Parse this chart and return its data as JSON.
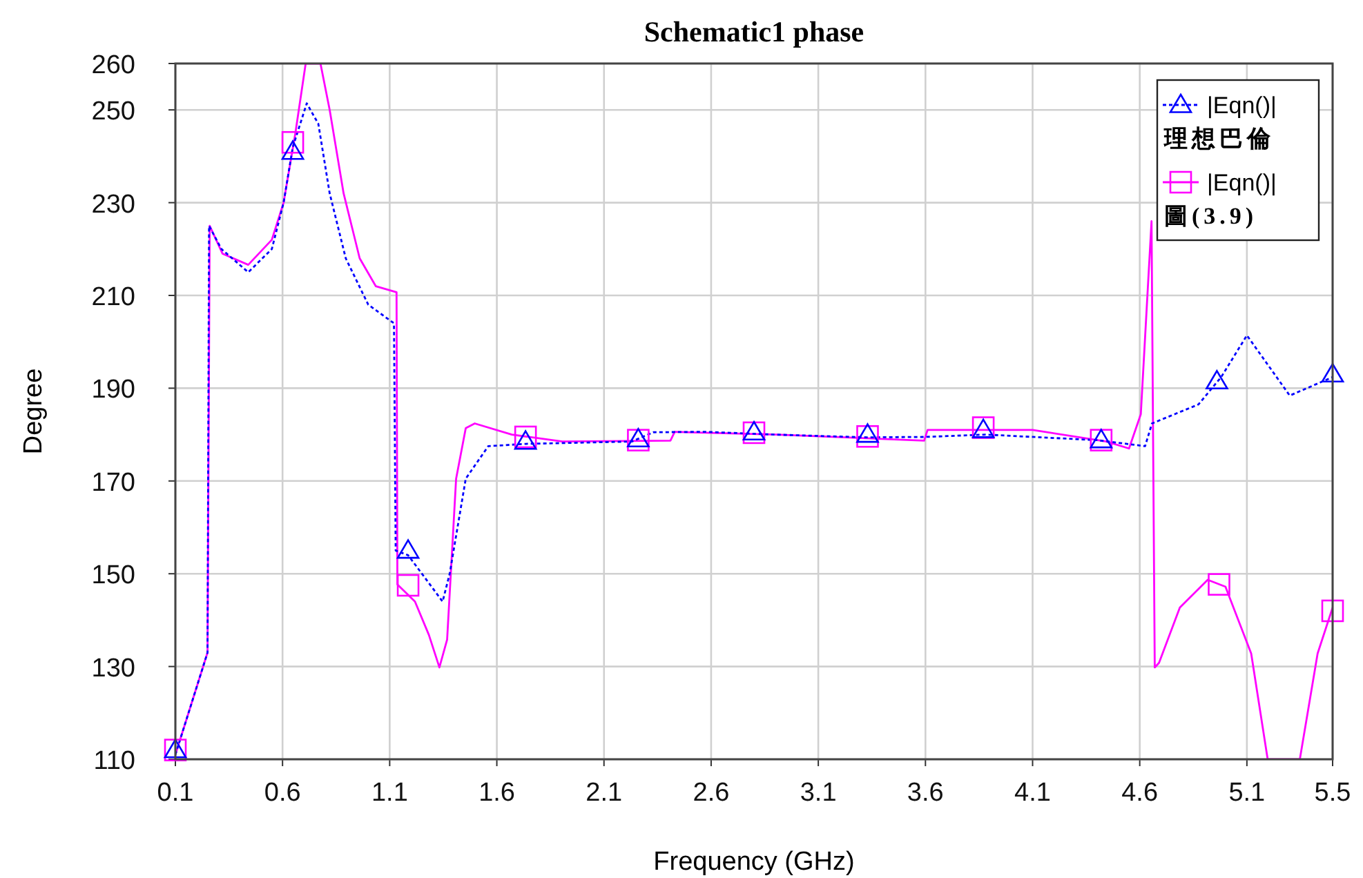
{
  "chart_data": {
    "type": "line",
    "title": "Schematic1 phase",
    "xlabel": "Frequency (GHz)",
    "ylabel": "Degree",
    "xlim": [
      0.1,
      5.5
    ],
    "xticks": [
      0.1,
      0.6,
      1.1,
      1.6,
      2.1,
      2.6,
      3.1,
      3.6,
      4.1,
      4.6,
      5.1,
      5.5
    ],
    "ylim": [
      110,
      260
    ],
    "yticks": [
      110,
      130,
      150,
      170,
      190,
      210,
      230,
      250,
      260
    ],
    "grid": true,
    "legend": "top right",
    "series": [
      {
        "name": "|Eqn()|\n理想巴倫",
        "color": "#0000ff",
        "line_style": "dotted",
        "x": [
          0.1,
          0.25,
          0.257,
          0.315,
          0.44,
          0.55,
          0.605,
          0.648,
          0.713,
          0.767,
          0.82,
          0.895,
          1.0,
          1.12,
          1.128,
          1.186,
          1.347,
          1.38,
          1.455,
          1.56,
          1.734,
          2.23,
          2.33,
          2.57,
          2.895,
          3.326,
          3.605,
          3.88,
          4.4,
          4.625,
          4.657,
          4.874,
          4.98,
          5.1,
          5.3,
          5.5
        ],
        "values": [
          111,
          133,
          225,
          220,
          215,
          220,
          230,
          242,
          251.4,
          247,
          232,
          218,
          208,
          204,
          155,
          154,
          144,
          150,
          170.5,
          177.5,
          178,
          178.5,
          180.5,
          180.6,
          180,
          179.4,
          179.5,
          180,
          178.8,
          177.5,
          182.4,
          186.5,
          192.4,
          201.4,
          188.4,
          192.4
        ]
      },
      {
        "name": "|Eqn()|\n圖(3.9)",
        "color": "#ff00ff",
        "line_style": "solid",
        "x": [
          0.1,
          0.25,
          0.26,
          0.32,
          0.44,
          0.55,
          0.605,
          0.66,
          0.708,
          0.777,
          0.82,
          0.885,
          0.96,
          1.035,
          1.132,
          1.136,
          1.218,
          1.283,
          1.332,
          1.368,
          1.41,
          1.455,
          1.497,
          1.67,
          1.906,
          2.41,
          2.43,
          2.57,
          2.906,
          3.326,
          3.594,
          3.61,
          4.1,
          4.444,
          4.55,
          4.605,
          4.655,
          4.67,
          4.69,
          4.787,
          4.917,
          5.0,
          5.12,
          5.197,
          5.347,
          5.43,
          5.5
        ],
        "values": [
          111,
          133,
          225,
          219,
          216.6,
          222,
          230,
          245,
          260,
          260,
          250,
          232,
          218,
          212,
          210.7,
          147.7,
          144,
          136.8,
          129.8,
          135.8,
          170.5,
          181.4,
          182.4,
          180,
          178.5,
          178.7,
          180.6,
          180.4,
          180,
          179.2,
          178.7,
          181,
          181,
          178.5,
          177,
          184.4,
          226,
          129.8,
          130.8,
          142.7,
          148.7,
          147.2,
          132.8,
          110,
          110,
          132.8,
          142.7
        ]
      },
      {
        "type": "scatter",
        "marker": "triangle",
        "color": "#0000ff",
        "x": [
          0.1,
          0.648,
          1.186,
          1.734,
          2.26,
          2.8,
          3.33,
          3.87,
          4.42,
          4.96,
          5.5
        ],
        "values": [
          112,
          241,
          155,
          178.5,
          179,
          180.5,
          180,
          181,
          178.8,
          191.5,
          193
        ]
      },
      {
        "type": "scatter",
        "marker": "square",
        "color": "#ff00ff",
        "x": [
          0.1,
          0.648,
          1.186,
          1.734,
          2.26,
          2.8,
          3.33,
          3.87,
          4.42,
          4.97,
          5.5
        ],
        "values": [
          112,
          243,
          147.5,
          179.5,
          178.8,
          180.4,
          179.6,
          181.5,
          178.8,
          147.7,
          142
        ]
      }
    ]
  }
}
